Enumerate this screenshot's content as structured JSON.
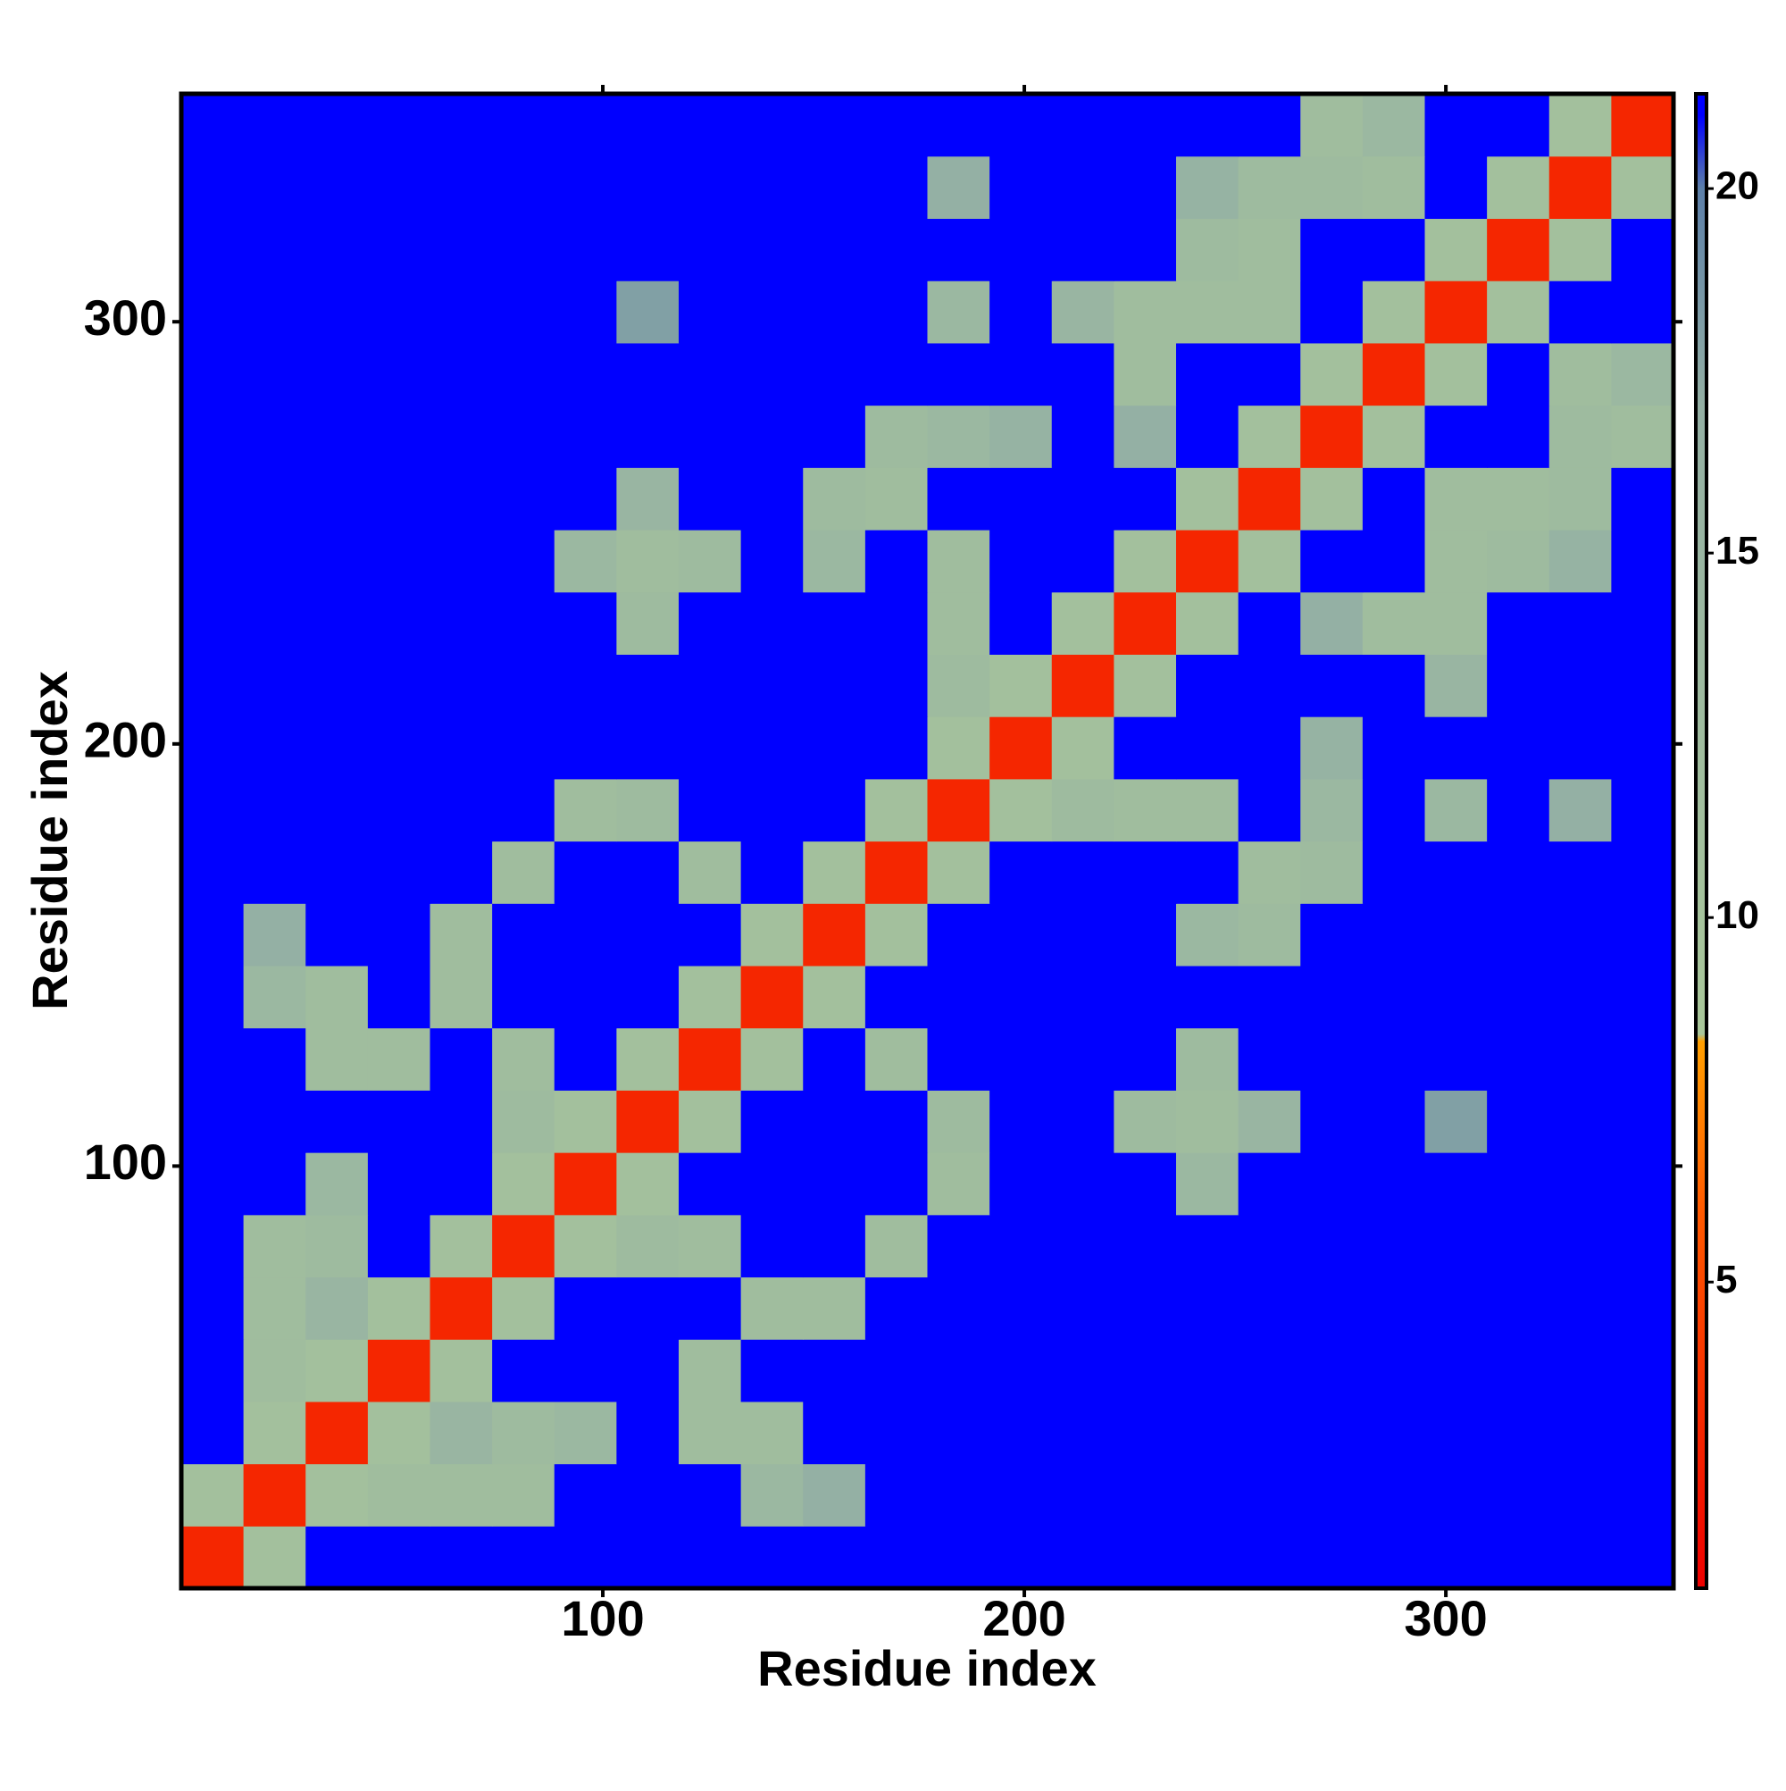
{
  "chart_data": {
    "type": "heatmap",
    "xlabel": "Residue index",
    "ylabel": "Residue index",
    "x_bins": [
      0,
      14.75,
      29.5,
      44.25,
      59,
      73.75,
      88.5,
      103.25,
      118,
      132.75,
      147.5,
      162.25,
      177,
      191.75,
      206.5,
      221.25,
      236,
      250.75,
      265.5,
      280.25,
      295,
      309.75,
      324.5,
      339.25,
      354
    ],
    "y_bins": [
      0,
      14.75,
      29.5,
      44.25,
      59,
      73.75,
      88.5,
      103.25,
      118,
      132.75,
      147.5,
      162.25,
      177,
      191.75,
      206.5,
      221.25,
      236,
      250.75,
      265.5,
      280.25,
      295,
      309.75,
      324.5,
      339.25,
      354
    ],
    "xlim": [
      0,
      354
    ],
    "ylim": [
      0,
      354
    ],
    "xticks": [
      100,
      200,
      300
    ],
    "yticks": [
      100,
      200,
      300
    ],
    "colorbar": {
      "lim": [
        0.8,
        21.3
      ],
      "ticks": [
        5,
        10,
        15,
        20
      ]
    },
    "colorscale": [
      [
        0.8,
        "#ee0000"
      ],
      [
        6,
        "#ff5a00"
      ],
      [
        8.3,
        "#ff9f00"
      ],
      [
        8.4,
        "#a9c79a"
      ],
      [
        17,
        "#94b0a4"
      ],
      [
        20,
        "#5c7fa8"
      ],
      [
        21,
        "#0000ff"
      ],
      [
        21.3,
        "#0000ff"
      ]
    ],
    "values": [
      [
        3,
        11,
        21,
        21,
        21,
        21,
        21,
        21,
        21,
        21,
        21,
        21,
        21,
        21,
        21,
        21,
        21,
        21,
        21,
        21,
        21,
        21,
        21,
        21
      ],
      [
        11,
        3,
        11,
        12,
        12,
        12,
        21,
        21,
        21,
        14,
        17,
        21,
        21,
        21,
        21,
        21,
        21,
        21,
        21,
        21,
        21,
        21,
        21,
        21
      ],
      [
        21,
        11,
        3,
        11,
        15,
        13,
        14,
        21,
        12,
        12,
        21,
        21,
        21,
        21,
        21,
        21,
        21,
        21,
        21,
        21,
        21,
        21,
        21,
        21
      ],
      [
        21,
        12,
        11,
        3,
        11,
        21,
        21,
        21,
        12,
        21,
        21,
        21,
        21,
        21,
        21,
        21,
        21,
        21,
        21,
        21,
        21,
        21,
        21,
        21
      ],
      [
        21,
        12,
        15,
        11,
        3,
        11,
        21,
        21,
        21,
        12,
        12,
        21,
        21,
        21,
        21,
        21,
        21,
        21,
        21,
        21,
        21,
        21,
        21,
        21
      ],
      [
        21,
        12,
        13,
        21,
        11,
        3,
        11,
        13,
        12,
        21,
        21,
        12,
        21,
        21,
        21,
        21,
        21,
        21,
        21,
        21,
        21,
        21,
        21,
        21
      ],
      [
        21,
        21,
        14,
        21,
        21,
        11,
        3,
        11,
        21,
        21,
        21,
        21,
        12,
        21,
        21,
        21,
        14,
        21,
        21,
        21,
        21,
        21,
        21,
        21
      ],
      [
        21,
        21,
        21,
        21,
        21,
        13,
        11,
        3,
        11,
        21,
        21,
        21,
        13,
        21,
        21,
        13,
        12,
        15,
        21,
        21,
        18,
        21,
        21,
        21
      ],
      [
        21,
        21,
        12,
        12,
        21,
        12,
        21,
        11,
        3,
        11,
        21,
        12,
        21,
        21,
        21,
        21,
        13,
        21,
        21,
        21,
        21,
        21,
        21,
        21
      ],
      [
        21,
        14,
        12,
        21,
        12,
        21,
        21,
        21,
        11,
        3,
        11,
        21,
        21,
        21,
        21,
        21,
        21,
        21,
        21,
        21,
        21,
        21,
        21,
        21
      ],
      [
        21,
        17,
        21,
        21,
        12,
        21,
        21,
        21,
        21,
        11,
        3,
        11,
        21,
        21,
        21,
        21,
        14,
        13,
        21,
        21,
        21,
        21,
        21,
        21
      ],
      [
        21,
        21,
        21,
        21,
        21,
        12,
        21,
        21,
        12,
        21,
        11,
        3,
        11,
        21,
        21,
        21,
        21,
        12,
        13,
        21,
        21,
        21,
        21,
        21
      ],
      [
        21,
        21,
        21,
        21,
        21,
        21,
        12,
        13,
        21,
        21,
        21,
        11,
        3,
        11,
        13,
        12,
        12,
        21,
        14,
        21,
        14,
        21,
        17,
        21
      ],
      [
        21,
        21,
        21,
        21,
        21,
        21,
        21,
        21,
        21,
        21,
        21,
        21,
        11,
        3,
        11,
        21,
        21,
        21,
        16,
        21,
        21,
        21,
        21,
        21
      ],
      [
        21,
        21,
        21,
        21,
        21,
        21,
        21,
        21,
        21,
        21,
        21,
        21,
        13,
        11,
        3,
        11,
        21,
        21,
        21,
        21,
        15,
        21,
        21,
        21
      ],
      [
        21,
        21,
        21,
        21,
        21,
        21,
        21,
        13,
        21,
        21,
        21,
        21,
        12,
        21,
        11,
        3,
        11,
        21,
        17,
        12,
        12,
        21,
        21,
        21
      ],
      [
        21,
        21,
        21,
        21,
        21,
        21,
        14,
        12,
        13,
        21,
        14,
        21,
        12,
        21,
        21,
        11,
        3,
        11,
        21,
        21,
        12,
        13,
        16,
        21
      ],
      [
        21,
        21,
        21,
        21,
        21,
        21,
        21,
        15,
        21,
        21,
        13,
        12,
        21,
        21,
        21,
        21,
        11,
        3,
        11,
        21,
        12,
        12,
        13,
        21
      ],
      [
        21,
        21,
        21,
        21,
        21,
        21,
        21,
        21,
        21,
        21,
        21,
        13,
        14,
        16,
        21,
        17,
        21,
        11,
        3,
        11,
        21,
        21,
        13,
        12
      ],
      [
        21,
        21,
        21,
        21,
        21,
        21,
        21,
        21,
        21,
        21,
        21,
        21,
        21,
        21,
        21,
        12,
        21,
        21,
        11,
        3,
        11,
        21,
        12,
        14
      ],
      [
        21,
        21,
        21,
        21,
        21,
        21,
        21,
        18,
        21,
        21,
        21,
        21,
        14,
        21,
        15,
        12,
        12,
        12,
        21,
        11,
        3,
        11,
        21,
        21
      ],
      [
        21,
        21,
        21,
        21,
        21,
        21,
        21,
        21,
        21,
        21,
        21,
        21,
        21,
        21,
        21,
        21,
        13,
        12,
        21,
        21,
        11,
        3,
        11,
        21
      ],
      [
        21,
        21,
        21,
        21,
        21,
        21,
        21,
        21,
        21,
        21,
        21,
        21,
        17,
        21,
        21,
        21,
        16,
        13,
        13,
        12,
        21,
        11,
        3,
        11
      ],
      [
        21,
        21,
        21,
        21,
        21,
        21,
        21,
        21,
        21,
        21,
        21,
        21,
        21,
        21,
        21,
        21,
        21,
        21,
        12,
        14,
        21,
        21,
        11,
        3
      ]
    ]
  }
}
